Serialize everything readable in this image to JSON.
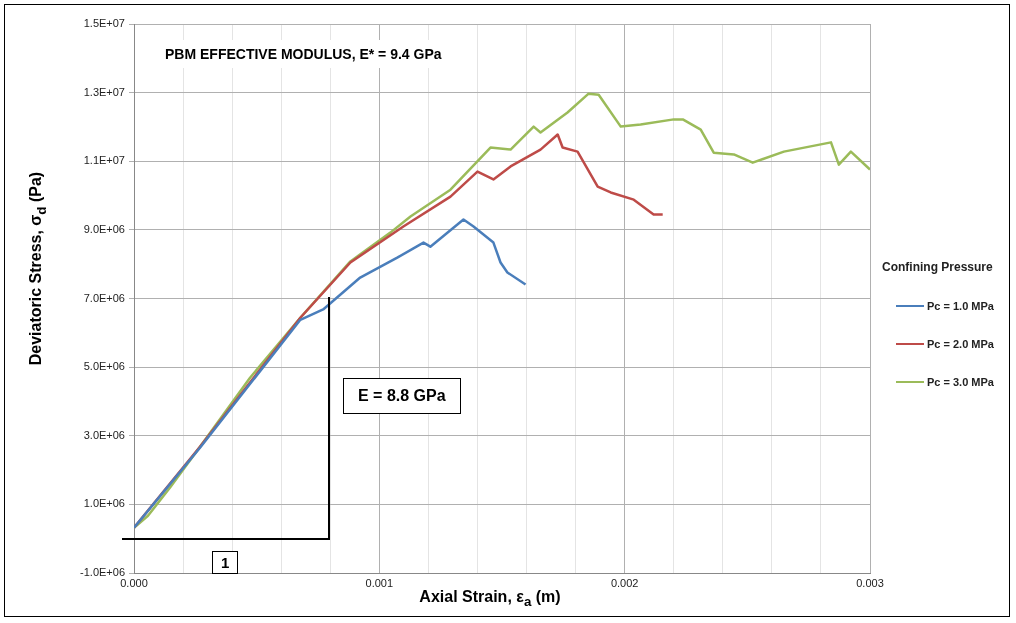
{
  "chart_data": {
    "type": "line",
    "xlabel": "Axial Strain, ε$_{a}$  (m)",
    "ylabel": "Deviatoric Stress, σ$_{d}$ (Pa)",
    "legend_title": "Confining Pressure",
    "annotations": [
      "PBM EFFECTIVE MODULUS, E* = 9.4 GPa",
      "E = 8.8 GPa",
      "1"
    ],
    "xlim": [
      0,
      0.003
    ],
    "ylim": [
      -1000000,
      15000000
    ],
    "xticks": [
      {
        "value": 0,
        "label": "0.000"
      },
      {
        "value": 0.0002,
        "label": null
      },
      {
        "value": 0.0004,
        "label": null
      },
      {
        "value": 0.0006,
        "label": null
      },
      {
        "value": 0.0008,
        "label": null
      },
      {
        "value": 0.001,
        "label": "0.001"
      },
      {
        "value": 0.0012,
        "label": null
      },
      {
        "value": 0.0014,
        "label": null
      },
      {
        "value": 0.0016,
        "label": null
      },
      {
        "value": 0.0018,
        "label": null
      },
      {
        "value": 0.002,
        "label": "0.002"
      },
      {
        "value": 0.0022,
        "label": null
      },
      {
        "value": 0.0024,
        "label": null
      },
      {
        "value": 0.0026,
        "label": null
      },
      {
        "value": 0.0028,
        "label": null
      },
      {
        "value": 0.003,
        "label": "0.003"
      }
    ],
    "yticks": [
      {
        "value": -1000000,
        "label": "-1.0E+06"
      },
      {
        "value": 1000000,
        "label": "1.0E+06"
      },
      {
        "value": 3000000,
        "label": "3.0E+06"
      },
      {
        "value": 5000000,
        "label": "5.0E+06"
      },
      {
        "value": 7000000,
        "label": "7.0E+06"
      },
      {
        "value": 9000000,
        "label": "9.0E+06"
      },
      {
        "value": 11000000,
        "label": "1.1E+07"
      },
      {
        "value": 13000000,
        "label": "1.3E+07"
      },
      {
        "value": 15000000,
        "label": "1.5E+07"
      }
    ],
    "grid": true,
    "legend": "right",
    "marker": "none",
    "line_style": "solid",
    "series": [
      {
        "name": "Pc = 1.0 MPa",
        "color": "#4a7ebb",
        "x": [
          0,
          0.000269,
          0.000678,
          0.000771,
          0.000922,
          0.001073,
          0.00118,
          0.001208,
          0.001343,
          0.001384,
          0.001465,
          0.001494,
          0.001522,
          0.001596
        ],
        "values": [
          320000,
          2650000,
          6380000,
          6680000,
          7610000,
          8190000,
          8630000,
          8510000,
          9300000,
          9100000,
          8630000,
          8050000,
          7760000,
          7410000
        ]
      },
      {
        "name": "Pc = 2.0 MPa",
        "color": "#be4b48",
        "x": [
          0,
          0.000269,
          0.000678,
          0.000882,
          0.001098,
          0.00129,
          0.0014,
          0.001465,
          0.001535,
          0.001657,
          0.001727,
          0.001747,
          0.001808,
          0.00189,
          0.001943,
          0.002037,
          0.002118,
          0.002155
        ],
        "values": [
          320000,
          2680000,
          6440000,
          8050000,
          9100000,
          9970000,
          10700000,
          10470000,
          10850000,
          11340000,
          11780000,
          11400000,
          11280000,
          10260000,
          10090000,
          9880000,
          9450000,
          9450000
        ]
      },
      {
        "name": "Pc = 3.0 MPa",
        "color": "#9bbb59",
        "x": [
          0,
          5.7e-05,
          0.000147,
          0.000269,
          0.000473,
          0.000678,
          0.000882,
          0.001045,
          0.001127,
          0.00129,
          0.001453,
          0.001535,
          0.001629,
          0.001657,
          0.001767,
          0.001853,
          0.001894,
          0.001984,
          0.002065,
          0.0022,
          0.002237,
          0.00231,
          0.002363,
          0.002445,
          0.002522,
          0.002649,
          0.002841,
          0.002873,
          0.002922,
          0.003
        ],
        "values": [
          320000,
          670000,
          1490000,
          2680000,
          4690000,
          6440000,
          8080000,
          8920000,
          9390000,
          10170000,
          11400000,
          11340000,
          12010000,
          11840000,
          12420000,
          12970000,
          12940000,
          12010000,
          12070000,
          12220000,
          12220000,
          11920000,
          11250000,
          11200000,
          10960000,
          11280000,
          11550000,
          10900000,
          11280000,
          10760000
        ]
      }
    ]
  }
}
